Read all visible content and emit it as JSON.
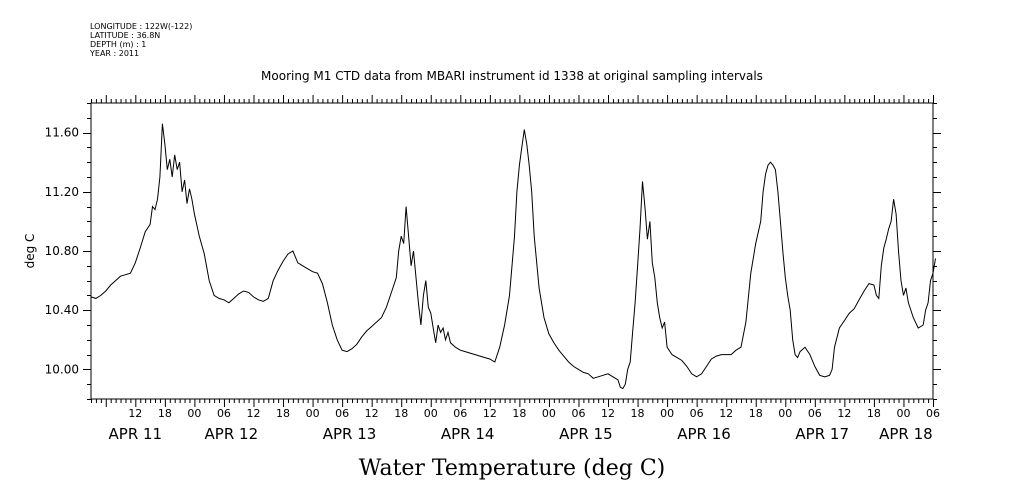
{
  "metadata": {
    "longitude": "LONGITUDE : 122W(-122)",
    "latitude": "LATITUDE : 36.8N",
    "depth": "DEPTH (m) : 1",
    "year": "YEAR : 2011"
  },
  "chart_data": {
    "type": "line",
    "title": "Mooring M1 CTD data from MBARI instrument id 1338 at original sampling intervals",
    "xlabel": "Water Temperature (deg C)",
    "ylabel": "deg C",
    "ylim": [
      9.8,
      11.8
    ],
    "yticks": [
      "10.00",
      "10.40",
      "10.80",
      "11.20",
      "11.60"
    ],
    "ytick_values": [
      10.0,
      10.4,
      10.8,
      11.2,
      11.6
    ],
    "xlim": [
      3,
      174
    ],
    "hour_ticks": [
      {
        "h": 12,
        "label": "12"
      },
      {
        "h": 18,
        "label": "18"
      },
      {
        "h": 24,
        "label": "00"
      },
      {
        "h": 30,
        "label": "06"
      },
      {
        "h": 36,
        "label": "12"
      },
      {
        "h": 42,
        "label": "18"
      },
      {
        "h": 48,
        "label": "00"
      },
      {
        "h": 54,
        "label": "06"
      },
      {
        "h": 60,
        "label": "12"
      },
      {
        "h": 66,
        "label": "18"
      },
      {
        "h": 72,
        "label": "00"
      },
      {
        "h": 78,
        "label": "06"
      },
      {
        "h": 84,
        "label": "12"
      },
      {
        "h": 90,
        "label": "18"
      },
      {
        "h": 96,
        "label": "00"
      },
      {
        "h": 102,
        "label": "06"
      },
      {
        "h": 108,
        "label": "12"
      },
      {
        "h": 114,
        "label": "18"
      },
      {
        "h": 120,
        "label": "00"
      },
      {
        "h": 126,
        "label": "06"
      },
      {
        "h": 132,
        "label": "12"
      },
      {
        "h": 138,
        "label": "18"
      },
      {
        "h": 144,
        "label": "00"
      },
      {
        "h": 150,
        "label": "06"
      },
      {
        "h": 156,
        "label": "12"
      },
      {
        "h": 162,
        "label": "18"
      },
      {
        "h": 168,
        "label": "00"
      },
      {
        "h": 174,
        "label": "06"
      }
    ],
    "date_labels": [
      {
        "h": 12,
        "label": "APR 11"
      },
      {
        "h": 31.5,
        "label": "APR 12"
      },
      {
        "h": 55.5,
        "label": "APR 13"
      },
      {
        "h": 79.5,
        "label": "APR 14"
      },
      {
        "h": 103.5,
        "label": "APR 15"
      },
      {
        "h": 127.5,
        "label": "APR 16"
      },
      {
        "h": 151.5,
        "label": "APR 17"
      },
      {
        "h": 168.5,
        "label": "APR 18"
      }
    ],
    "series": [
      {
        "points": [
          [
            3,
            10.49
          ],
          [
            4,
            10.48
          ],
          [
            5,
            10.5
          ],
          [
            6,
            10.53
          ],
          [
            7,
            10.57
          ],
          [
            8,
            10.6
          ],
          [
            9,
            10.63
          ],
          [
            10,
            10.64
          ],
          [
            11,
            10.65
          ],
          [
            12,
            10.72
          ],
          [
            13,
            10.82
          ],
          [
            14,
            10.93
          ],
          [
            15,
            10.98
          ],
          [
            15.5,
            11.1
          ],
          [
            16,
            11.08
          ],
          [
            16.5,
            11.15
          ],
          [
            17,
            11.3
          ],
          [
            17.5,
            11.66
          ],
          [
            18,
            11.52
          ],
          [
            18.5,
            11.35
          ],
          [
            19,
            11.42
          ],
          [
            19.5,
            11.3
          ],
          [
            20,
            11.45
          ],
          [
            20.5,
            11.35
          ],
          [
            21,
            11.4
          ],
          [
            21.5,
            11.2
          ],
          [
            22,
            11.28
          ],
          [
            22.5,
            11.12
          ],
          [
            23,
            11.22
          ],
          [
            23.5,
            11.15
          ],
          [
            24,
            11.05
          ],
          [
            25,
            10.9
          ],
          [
            26,
            10.78
          ],
          [
            27,
            10.6
          ],
          [
            28,
            10.5
          ],
          [
            29,
            10.48
          ],
          [
            30,
            10.47
          ],
          [
            31,
            10.45
          ],
          [
            32,
            10.48
          ],
          [
            33,
            10.51
          ],
          [
            34,
            10.53
          ],
          [
            35,
            10.52
          ],
          [
            36,
            10.49
          ],
          [
            37,
            10.47
          ],
          [
            38,
            10.46
          ],
          [
            39,
            10.48
          ],
          [
            40,
            10.6
          ],
          [
            41,
            10.67
          ],
          [
            42,
            10.73
          ],
          [
            43,
            10.78
          ],
          [
            44,
            10.8
          ],
          [
            45,
            10.72
          ],
          [
            46,
            10.7
          ],
          [
            47,
            10.68
          ],
          [
            48,
            10.66
          ],
          [
            49,
            10.65
          ],
          [
            50,
            10.58
          ],
          [
            51,
            10.45
          ],
          [
            52,
            10.3
          ],
          [
            53,
            10.2
          ],
          [
            54,
            10.13
          ],
          [
            55,
            10.12
          ],
          [
            56,
            10.14
          ],
          [
            57,
            10.17
          ],
          [
            58,
            10.22
          ],
          [
            59,
            10.26
          ],
          [
            60,
            10.29
          ],
          [
            61,
            10.32
          ],
          [
            62,
            10.35
          ],
          [
            63,
            10.42
          ],
          [
            64,
            10.52
          ],
          [
            65,
            10.62
          ],
          [
            65.5,
            10.8
          ],
          [
            66,
            10.9
          ],
          [
            66.5,
            10.85
          ],
          [
            67,
            11.1
          ],
          [
            67.5,
            10.9
          ],
          [
            68,
            10.7
          ],
          [
            68.5,
            10.8
          ],
          [
            69,
            10.62
          ],
          [
            69.5,
            10.45
          ],
          [
            70,
            10.3
          ],
          [
            70.5,
            10.5
          ],
          [
            71,
            10.6
          ],
          [
            71.5,
            10.42
          ],
          [
            72,
            10.38
          ],
          [
            72.5,
            10.28
          ],
          [
            73,
            10.18
          ],
          [
            73.5,
            10.3
          ],
          [
            74,
            10.25
          ],
          [
            74.5,
            10.28
          ],
          [
            75,
            10.2
          ],
          [
            75.5,
            10.25
          ],
          [
            76,
            10.18
          ],
          [
            77,
            10.15
          ],
          [
            78,
            10.13
          ],
          [
            79,
            10.12
          ],
          [
            80,
            10.11
          ],
          [
            81,
            10.1
          ],
          [
            82,
            10.09
          ],
          [
            83,
            10.08
          ],
          [
            84,
            10.07
          ],
          [
            85,
            10.05
          ],
          [
            86,
            10.15
          ],
          [
            87,
            10.3
          ],
          [
            88,
            10.5
          ],
          [
            89,
            10.9
          ],
          [
            89.5,
            11.2
          ],
          [
            90,
            11.38
          ],
          [
            90.5,
            11.5
          ],
          [
            91,
            11.62
          ],
          [
            91.5,
            11.52
          ],
          [
            92,
            11.38
          ],
          [
            92.5,
            11.2
          ],
          [
            93,
            10.9
          ],
          [
            94,
            10.55
          ],
          [
            95,
            10.35
          ],
          [
            96,
            10.24
          ],
          [
            97,
            10.18
          ],
          [
            98,
            10.13
          ],
          [
            99,
            10.09
          ],
          [
            100,
            10.05
          ],
          [
            101,
            10.02
          ],
          [
            102,
            10.0
          ],
          [
            103,
            9.98
          ],
          [
            104,
            9.97
          ],
          [
            105,
            9.94
          ],
          [
            106,
            9.95
          ],
          [
            107,
            9.96
          ],
          [
            108,
            9.97
          ],
          [
            109,
            9.95
          ],
          [
            110,
            9.93
          ],
          [
            110.5,
            9.88
          ],
          [
            111,
            9.87
          ],
          [
            111.5,
            9.9
          ],
          [
            112,
            10.0
          ],
          [
            112.5,
            10.05
          ],
          [
            113,
            10.25
          ],
          [
            113.5,
            10.45
          ],
          [
            114,
            10.7
          ],
          [
            114.5,
            10.95
          ],
          [
            115,
            11.27
          ],
          [
            115.5,
            11.1
          ],
          [
            116,
            10.88
          ],
          [
            116.5,
            11.0
          ],
          [
            117,
            10.72
          ],
          [
            117.5,
            10.62
          ],
          [
            118,
            10.45
          ],
          [
            118.5,
            10.35
          ],
          [
            119,
            10.28
          ],
          [
            119.5,
            10.32
          ],
          [
            120,
            10.15
          ],
          [
            121,
            10.1
          ],
          [
            122,
            10.08
          ],
          [
            123,
            10.06
          ],
          [
            124,
            10.02
          ],
          [
            125,
            9.97
          ],
          [
            126,
            9.95
          ],
          [
            127,
            9.97
          ],
          [
            128,
            10.02
          ],
          [
            129,
            10.07
          ],
          [
            130,
            10.09
          ],
          [
            131,
            10.1
          ],
          [
            132,
            10.1
          ],
          [
            133,
            10.1
          ],
          [
            134,
            10.13
          ],
          [
            135,
            10.15
          ],
          [
            136,
            10.32
          ],
          [
            137,
            10.65
          ],
          [
            138,
            10.85
          ],
          [
            139,
            11.0
          ],
          [
            139.5,
            11.2
          ],
          [
            140,
            11.32
          ],
          [
            140.5,
            11.38
          ],
          [
            141,
            11.4
          ],
          [
            141.5,
            11.38
          ],
          [
            142,
            11.35
          ],
          [
            142.5,
            11.2
          ],
          [
            143,
            11.0
          ],
          [
            143.5,
            10.8
          ],
          [
            144,
            10.62
          ],
          [
            144.5,
            10.5
          ],
          [
            145,
            10.4
          ],
          [
            145.5,
            10.2
          ],
          [
            146,
            10.1
          ],
          [
            146.5,
            10.08
          ],
          [
            147,
            10.12
          ],
          [
            148,
            10.15
          ],
          [
            149,
            10.1
          ],
          [
            150,
            10.02
          ],
          [
            151,
            9.96
          ],
          [
            152,
            9.95
          ],
          [
            153,
            9.96
          ],
          [
            153.5,
            10.0
          ],
          [
            154,
            10.15
          ],
          [
            155,
            10.28
          ],
          [
            156,
            10.33
          ],
          [
            157,
            10.38
          ],
          [
            158,
            10.41
          ],
          [
            159,
            10.47
          ],
          [
            160,
            10.53
          ],
          [
            161,
            10.58
          ],
          [
            162,
            10.57
          ],
          [
            162.5,
            10.5
          ],
          [
            163,
            10.48
          ],
          [
            163.5,
            10.7
          ],
          [
            164,
            10.82
          ],
          [
            164.5,
            10.88
          ],
          [
            165,
            10.95
          ],
          [
            165.5,
            11.0
          ],
          [
            166,
            11.15
          ],
          [
            166.5,
            11.05
          ],
          [
            167,
            10.8
          ],
          [
            167.5,
            10.6
          ],
          [
            168,
            10.5
          ],
          [
            168.5,
            10.55
          ],
          [
            169,
            10.45
          ],
          [
            170,
            10.35
          ],
          [
            171,
            10.28
          ],
          [
            172,
            10.3
          ],
          [
            172.5,
            10.4
          ],
          [
            173,
            10.45
          ],
          [
            173.5,
            10.6
          ],
          [
            174,
            10.65
          ],
          [
            174.5,
            10.75
          ]
        ]
      }
    ]
  }
}
